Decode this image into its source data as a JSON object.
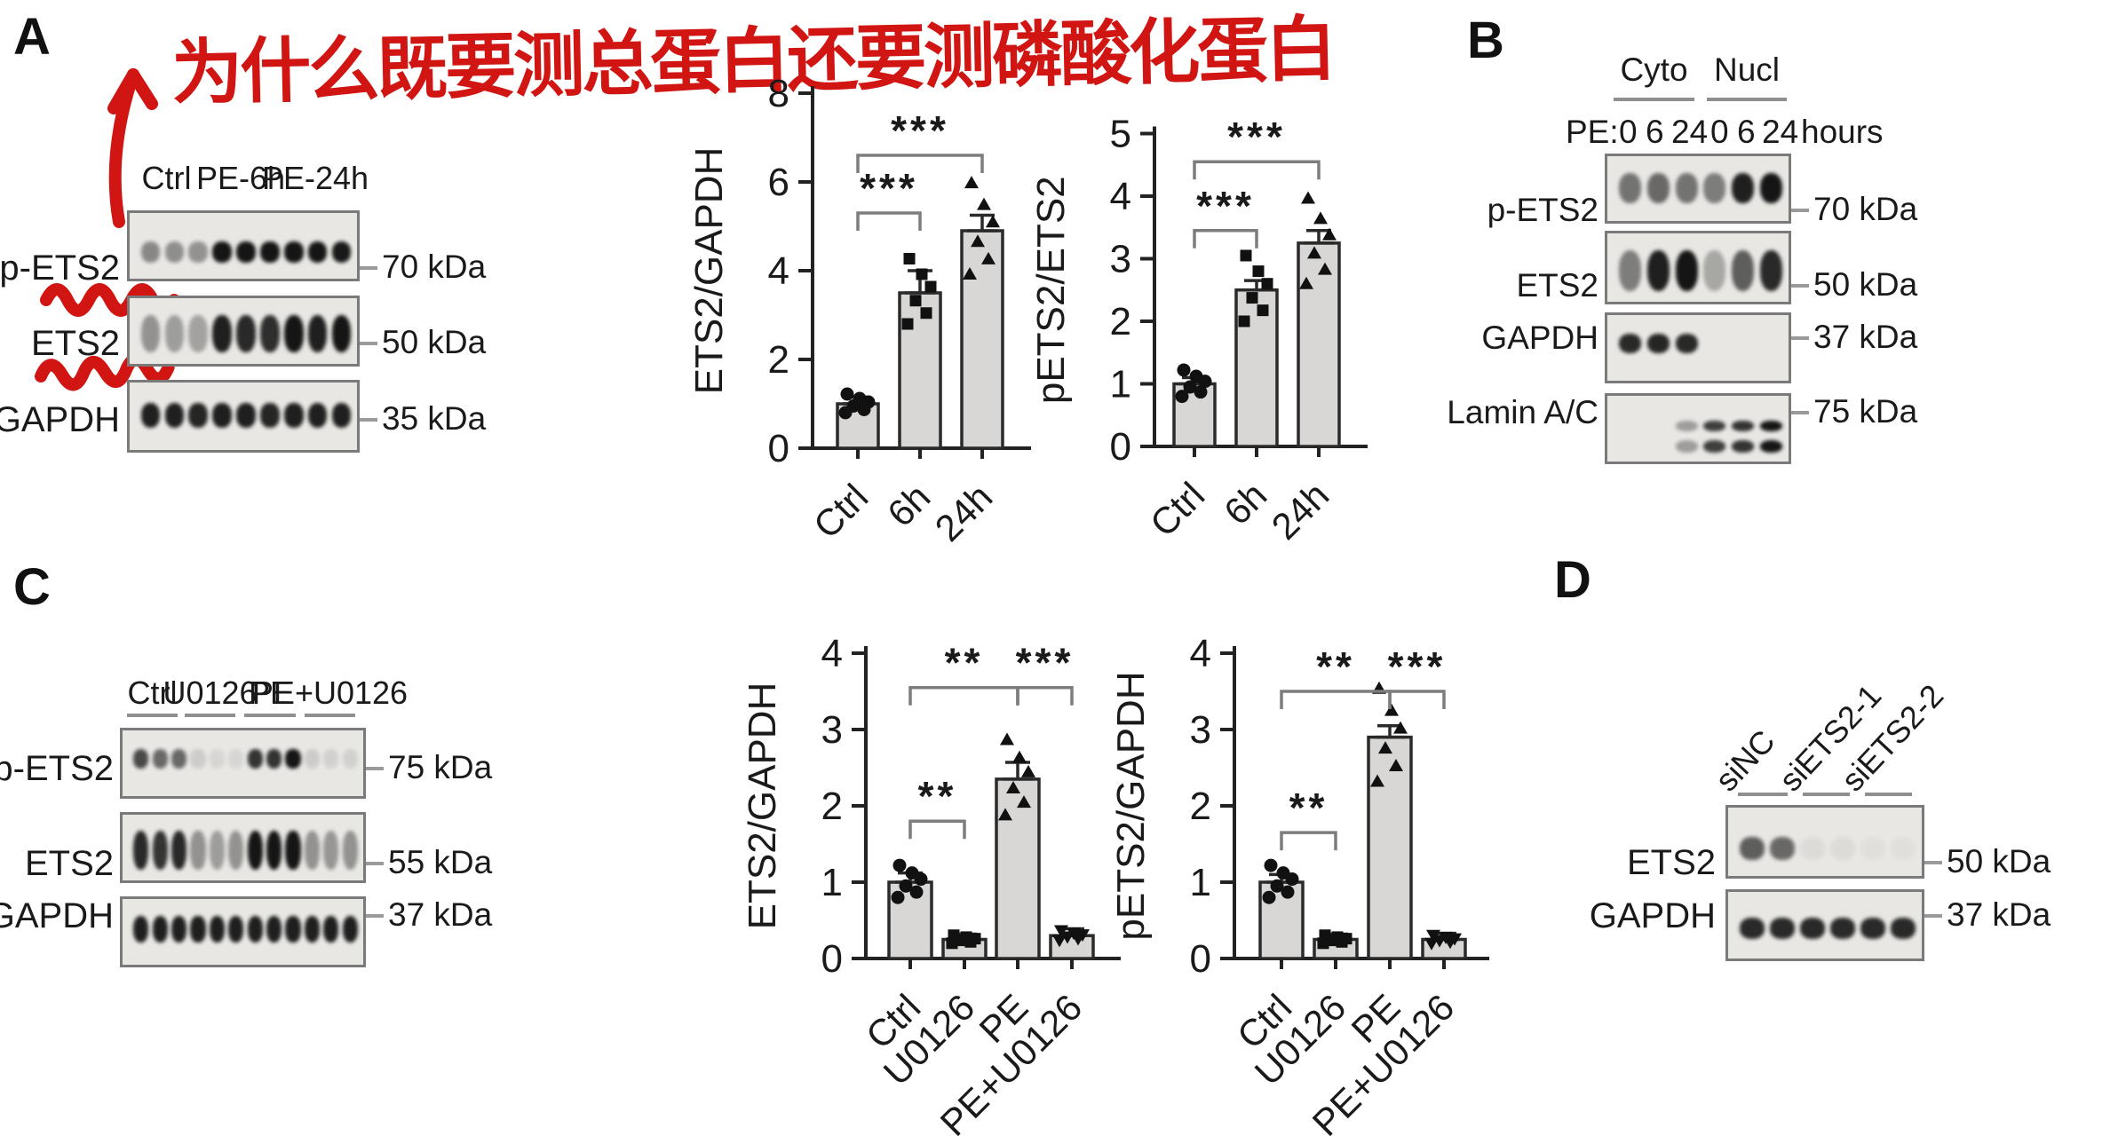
{
  "colors": {
    "annotation_red": "#d01512",
    "band_dark": "#151515",
    "bar_fill": "#d8d7d5",
    "axis_dark": "#222222",
    "bracket_gray": "#7d7d7d",
    "box_background": "#e8e7e4",
    "box_border": "#7a7a7a",
    "underline_gray": "#8f8f8f"
  },
  "figure": {
    "panel_labels": {
      "a": "A",
      "b": "B",
      "c": "C",
      "d": "D"
    },
    "annotation": {
      "text": "为什么既要测总蛋白还要测磷酸化蛋白"
    },
    "panel_a": {
      "groups": [
        "Ctrl",
        "PE-6h",
        "PE-24h"
      ],
      "blots": [
        {
          "label": "p-ETS2",
          "kda": "70 kDa",
          "bands": [
            0.45,
            0.42,
            0.4,
            1,
            1,
            1,
            1,
            1,
            0.98
          ]
        },
        {
          "label": "ETS2",
          "kda": "50 kDa",
          "bands": [
            0.4,
            0.35,
            0.32,
            0.95,
            0.9,
            0.88,
            1,
            0.95,
            1
          ]
        },
        {
          "label": "GAPDH",
          "kda": "35 kDa",
          "bands": [
            0.95,
            0.95,
            0.92,
            0.95,
            0.95,
            0.92,
            0.95,
            0.95,
            0.95
          ]
        }
      ]
    },
    "panel_b": {
      "groups": [
        "Cyto",
        "Nucl"
      ],
      "conditions": [
        "PE:",
        "0",
        "6",
        "24",
        "0",
        "6",
        "24",
        "hours"
      ],
      "blots": [
        {
          "label": "p-ETS2",
          "kda": "70 kDa",
          "bands": [
            0.55,
            0.6,
            0.55,
            0.5,
            0.95,
            1
          ]
        },
        {
          "label": "ETS2",
          "kda": "50 kDa",
          "bands": [
            0.5,
            0.95,
            1,
            0.3,
            0.65,
            0.9
          ]
        },
        {
          "label": "GAPDH",
          "kda": "37 kDa",
          "bands": [
            0.9,
            0.92,
            0.9,
            0,
            0,
            0
          ]
        },
        {
          "label": "Lamin A/C",
          "kda": "75 kDa",
          "bands": [
            0,
            0,
            0.35,
            0.8,
            0.85,
            1
          ]
        }
      ]
    },
    "panel_c": {
      "groups": [
        "Ctrl",
        "U0126",
        "PE",
        "PE+U0126"
      ],
      "blots": [
        {
          "label": "p-ETS2",
          "kda": "75 kDa",
          "bands": [
            0.75,
            0.6,
            0.6,
            0.12,
            0.08,
            0.08,
            0.85,
            0.85,
            1,
            0.12,
            0.1,
            0.1
          ]
        },
        {
          "label": "ETS2",
          "kda": "55 kDa",
          "bands": [
            0.9,
            0.85,
            0.9,
            0.4,
            0.35,
            0.4,
            1,
            1,
            1,
            0.4,
            0.38,
            0.4
          ]
        },
        {
          "label": "GAPDH",
          "kda": "37 kDa",
          "bands": [
            0.95,
            0.95,
            0.95,
            0.95,
            0.95,
            0.95,
            0.95,
            0.95,
            0.95,
            0.95,
            0.95,
            0.95
          ]
        }
      ]
    },
    "panel_d": {
      "lanes": [
        "siNC",
        "siETS2-1",
        "siETS2-2"
      ],
      "blots": [
        {
          "label": "ETS2",
          "kda": "50 kDa",
          "bands": [
            0.65,
            0.6,
            0.05,
            0.05,
            0.03,
            0.03
          ]
        },
        {
          "label": "GAPDH",
          "kda": "37 kDa",
          "bands": [
            0.9,
            0.9,
            0.9,
            0.9,
            0.9,
            0.9
          ]
        }
      ]
    }
  },
  "chart_data": [
    {
      "panel": "A",
      "type": "bar",
      "ylabel": "ETS2/GAPDH",
      "categories": [
        "Ctrl",
        "6h",
        "24h"
      ],
      "values": [
        1.0,
        3.5,
        4.9
      ],
      "errors": [
        0.15,
        0.5,
        0.35
      ],
      "ylim": [
        0,
        8
      ],
      "yticks": [
        0,
        2,
        4,
        6,
        8
      ],
      "grid": false,
      "markers": [
        "circle",
        "square",
        "triangle-up"
      ],
      "significance": [
        {
          "from": 0,
          "to": 1,
          "label": "***",
          "y": 5.3
        },
        {
          "from": 0,
          "to": 2,
          "label": "***",
          "y": 6.6
        }
      ]
    },
    {
      "panel": "A",
      "type": "bar",
      "ylabel": "pETS2/ETS2",
      "categories": [
        "Ctrl",
        "6h",
        "24h"
      ],
      "values": [
        1.0,
        2.5,
        3.25
      ],
      "errors": [
        0.1,
        0.15,
        0.2
      ],
      "ylim": [
        0,
        5
      ],
      "yticks": [
        0,
        1,
        2,
        3,
        4,
        5
      ],
      "grid": false,
      "markers": [
        "circle",
        "square",
        "triangle-up"
      ],
      "significance": [
        {
          "from": 0,
          "to": 1,
          "label": "***",
          "y": 3.45
        },
        {
          "from": 0,
          "to": 2,
          "label": "***",
          "y": 4.55
        }
      ]
    },
    {
      "panel": "C",
      "type": "bar",
      "ylabel": "ETS2/GAPDH",
      "categories": [
        "Ctrl",
        "U0126",
        "PE",
        "PE+U0126"
      ],
      "values": [
        1.0,
        0.25,
        2.35,
        0.3
      ],
      "errors": [
        0.12,
        0.07,
        0.22,
        0.09
      ],
      "ylim": [
        0,
        4
      ],
      "yticks": [
        0,
        1,
        2,
        3,
        4
      ],
      "grid": false,
      "markers": [
        "circle",
        "square",
        "triangle-up",
        "triangle-down"
      ],
      "significance": [
        {
          "from": 0,
          "to": 1,
          "label": "**",
          "y": 1.8
        },
        {
          "from": 0,
          "to": 2,
          "label": "**",
          "y": 3.55
        },
        {
          "from": 2,
          "to": 3,
          "label": "***",
          "y": 3.55
        }
      ]
    },
    {
      "panel": "C",
      "type": "bar",
      "ylabel": "pETS2/GAPDH",
      "categories": [
        "Ctrl",
        "U0126",
        "PE",
        "PE+U0126"
      ],
      "values": [
        1.0,
        0.25,
        2.9,
        0.25
      ],
      "errors": [
        0.1,
        0.07,
        0.15,
        0.08
      ],
      "ylim": [
        0,
        4
      ],
      "yticks": [
        0,
        1,
        2,
        3,
        4
      ],
      "grid": false,
      "markers": [
        "circle",
        "square",
        "triangle-up",
        "triangle-down"
      ],
      "significance": [
        {
          "from": 0,
          "to": 1,
          "label": "**",
          "y": 1.65
        },
        {
          "from": 0,
          "to": 2,
          "label": "**",
          "y": 3.5
        },
        {
          "from": 2,
          "to": 3,
          "label": "***",
          "y": 3.5
        }
      ]
    }
  ]
}
